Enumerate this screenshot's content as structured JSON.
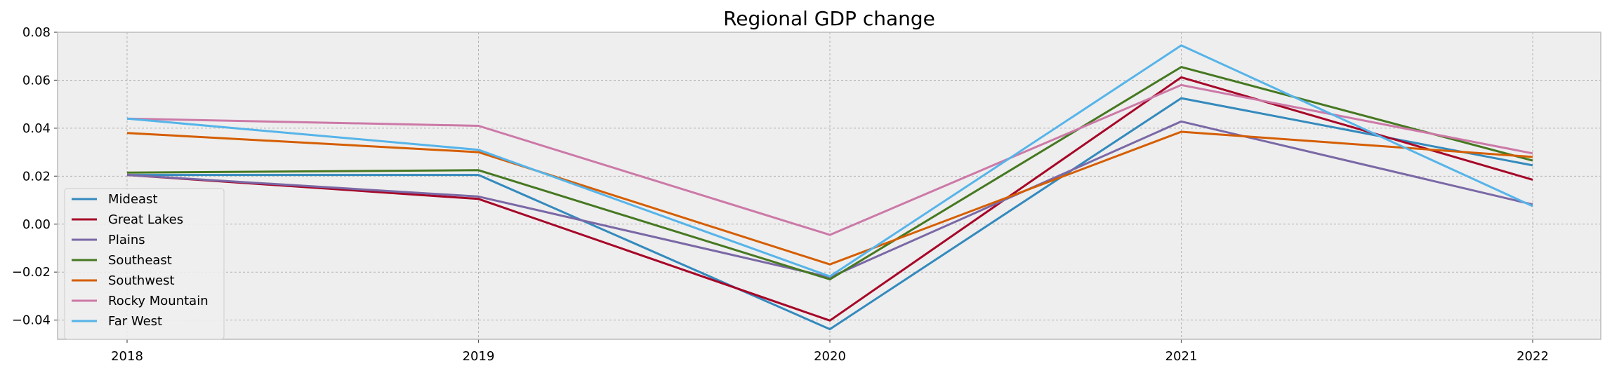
{
  "chart_data": {
    "type": "line",
    "title": "Regional GDP change",
    "xlabel": "",
    "ylabel": "",
    "categories": [
      "2018",
      "2019",
      "2020",
      "2021",
      "2022"
    ],
    "ylim": [
      -0.048,
      0.08
    ],
    "yticks": [
      -0.04,
      -0.02,
      0.0,
      0.02,
      0.04,
      0.06,
      0.08
    ],
    "ytick_labels": [
      "−0.04",
      "−0.02",
      "0.00",
      "0.02",
      "0.04",
      "0.06",
      "0.08"
    ],
    "grid": true,
    "legend_position": "lower-left",
    "series": [
      {
        "name": "Mideast",
        "color": "#348ABD",
        "values": [
          0.0205,
          0.0205,
          -0.0438,
          0.0525,
          0.0245
        ]
      },
      {
        "name": "Great Lakes",
        "color": "#A60628",
        "values": [
          0.0205,
          0.0105,
          -0.0402,
          0.0612,
          0.0185
        ]
      },
      {
        "name": "Plains",
        "color": "#7A68A6",
        "values": [
          0.0205,
          0.0115,
          -0.0222,
          0.0428,
          0.0082
        ]
      },
      {
        "name": "Southeast",
        "color": "#467821",
        "values": [
          0.0215,
          0.0225,
          -0.023,
          0.0655,
          0.0265
        ]
      },
      {
        "name": "Southwest",
        "color": "#D55E00",
        "values": [
          0.038,
          0.03,
          -0.0168,
          0.0385,
          0.028
        ]
      },
      {
        "name": "Rocky Mountain",
        "color": "#CC79A7",
        "values": [
          0.044,
          0.041,
          -0.0045,
          0.058,
          0.0295
        ]
      },
      {
        "name": "Far West",
        "color": "#56B4E9",
        "values": [
          0.044,
          0.031,
          -0.0218,
          0.0745,
          0.0075
        ]
      }
    ]
  }
}
